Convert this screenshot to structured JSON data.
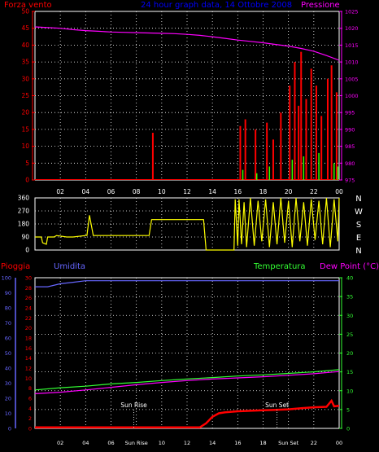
{
  "title": "24 hour graph data, 14 Ottobre 2008",
  "chart_data": [
    {
      "type": "line",
      "name": "wind-pressure",
      "left_label": "Forza vento",
      "right_label": "Pressione",
      "x_ticks": [
        "02",
        "04",
        "06",
        "08",
        "10",
        "12",
        "14",
        "16",
        "18",
        "20",
        "22",
        "00"
      ],
      "x_range_hours": [
        0,
        24
      ],
      "left_axis": {
        "range": [
          0,
          50
        ],
        "ticks": [
          "0",
          "5",
          "10",
          "15",
          "20",
          "25",
          "30",
          "35",
          "40",
          "45",
          "50"
        ]
      },
      "right_axis": {
        "range": [
          975,
          1025
        ],
        "ticks": [
          "975",
          "980",
          "985",
          "990",
          "995",
          "1000",
          "1005",
          "1010",
          "1015",
          "1020",
          "1025"
        ]
      },
      "pressure": {
        "x": [
          0,
          1,
          2,
          3,
          4,
          5,
          6,
          7,
          8,
          9,
          10,
          11,
          12,
          13,
          14,
          15,
          16,
          17,
          18,
          19,
          20,
          21,
          22,
          23,
          24
        ],
        "y": [
          1020.4,
          1020.2,
          1020.0,
          1019.6,
          1019.3,
          1019.1,
          1018.9,
          1018.8,
          1018.7,
          1018.6,
          1018.5,
          1018.4,
          1018.2,
          1017.9,
          1017.5,
          1017.0,
          1016.5,
          1016.1,
          1015.7,
          1015.2,
          1014.7,
          1014.0,
          1013.2,
          1011.9,
          1010.5
        ]
      },
      "wind_red_spikes": [
        [
          9.3,
          14
        ],
        [
          16.2,
          16
        ],
        [
          16.6,
          18
        ],
        [
          17.4,
          15
        ],
        [
          18.3,
          17
        ],
        [
          18.8,
          12
        ],
        [
          19.4,
          20
        ],
        [
          20.1,
          28
        ],
        [
          20.5,
          35
        ],
        [
          20.8,
          22
        ],
        [
          21.0,
          38
        ],
        [
          21.4,
          24
        ],
        [
          21.8,
          33
        ],
        [
          22.2,
          28
        ],
        [
          22.6,
          19
        ],
        [
          23.1,
          30
        ],
        [
          23.4,
          34
        ],
        [
          23.8,
          26
        ]
      ],
      "wind_green_spikes": [
        [
          16.4,
          3
        ],
        [
          17.5,
          2
        ],
        [
          18.5,
          4
        ],
        [
          20.3,
          6
        ],
        [
          21.2,
          7
        ],
        [
          22.4,
          8
        ],
        [
          23.6,
          5
        ],
        [
          23.9,
          4
        ]
      ]
    },
    {
      "type": "line",
      "name": "wind-direction",
      "right_labels": [
        "N",
        "W",
        "S",
        "E",
        "N"
      ],
      "y_axis": {
        "range": [
          0,
          360
        ],
        "ticks": [
          "0",
          "90",
          "180",
          "270",
          "360"
        ]
      },
      "x_range_hours": [
        0,
        24
      ],
      "direction": {
        "x": [
          0,
          0.5,
          0.6,
          0.9,
          1.0,
          1.5,
          1.7,
          2.5,
          3.0,
          4.0,
          4.1,
          4.3,
          4.6,
          5.0,
          5.5,
          6.0,
          6.5,
          7.0,
          8.0,
          8.8,
          9.0,
          9.2,
          10.0,
          11.0,
          12.0,
          13.0,
          13.3,
          13.5,
          15.0,
          15.7,
          15.8,
          16.0,
          16.1,
          16.3,
          16.5,
          16.7,
          17.0,
          17.3,
          17.6,
          17.9,
          18.2,
          18.5,
          18.8,
          19.1,
          19.4,
          19.7,
          20.0,
          20.3,
          20.6,
          20.9,
          21.2,
          21.5,
          21.8,
          22.1,
          22.4,
          22.7,
          23.0,
          23.3,
          23.6,
          23.9,
          24.0
        ],
        "y": [
          90,
          90,
          50,
          40,
          90,
          90,
          100,
          90,
          90,
          100,
          100,
          240,
          100,
          100,
          100,
          100,
          100,
          100,
          100,
          100,
          100,
          210,
          210,
          210,
          210,
          210,
          210,
          0,
          0,
          0,
          350,
          30,
          350,
          40,
          330,
          20,
          360,
          30,
          340,
          60,
          350,
          20,
          330,
          40,
          360,
          50,
          340,
          20,
          360,
          60,
          330,
          30,
          350,
          70,
          340,
          40,
          360,
          20,
          350,
          60,
          360
        ]
      }
    },
    {
      "type": "line",
      "name": "rain-humidity-temperature",
      "left_label_1": "Pioggia",
      "left_label_2": "Umidita",
      "right_label_1": "Temperatura",
      "right_label_2": "Dew Point (°C)",
      "x_ticks": [
        "02",
        "04",
        "06",
        "Sun Rise",
        "10",
        "12",
        "14",
        "16",
        "18",
        "Sun Set",
        "22",
        "00"
      ],
      "x_range_hours": [
        0,
        24
      ],
      "rain_axis": {
        "range": [
          0,
          30
        ],
        "ticks": [
          "0",
          "2",
          "4",
          "6",
          "8",
          "10",
          "12",
          "14",
          "16",
          "18",
          "20",
          "22",
          "24",
          "26",
          "28",
          "30"
        ]
      },
      "humidity_axis": {
        "range": [
          0,
          100
        ],
        "ticks": [
          "0",
          "10",
          "20",
          "30",
          "40",
          "50",
          "60",
          "70",
          "80",
          "90",
          "100"
        ]
      },
      "temperature_axis": {
        "range": [
          0,
          40
        ],
        "ticks": [
          "0",
          "5",
          "10",
          "15",
          "20",
          "25",
          "30",
          "35",
          "40"
        ]
      },
      "annotations": [
        {
          "text": "Sun Rise",
          "x": 7.8
        },
        {
          "text": "Sun Set",
          "x": 19.1
        }
      ],
      "rain": {
        "x": [
          0,
          13.0,
          13.5,
          14.0,
          14.5,
          15.0,
          16.0,
          17.0,
          18.0,
          19.0,
          20.0,
          21.0,
          22.0,
          23.0,
          23.4,
          23.6,
          24.0
        ],
        "y": [
          0.2,
          0.2,
          1.0,
          2.3,
          3.0,
          3.2,
          3.4,
          3.5,
          3.6,
          3.7,
          3.8,
          4.0,
          4.2,
          4.3,
          5.5,
          4.4,
          4.5
        ]
      },
      "humidity": {
        "x": [
          0,
          1,
          2,
          3,
          4,
          5,
          6,
          7,
          8,
          9,
          10,
          11,
          12,
          13,
          14,
          15,
          16,
          17,
          18,
          19,
          20,
          21,
          22,
          23,
          24
        ],
        "y": [
          94,
          94,
          96,
          97,
          98,
          98,
          98,
          98,
          98,
          98,
          98,
          98,
          98,
          98,
          98,
          98,
          98,
          98,
          98,
          98,
          98,
          98,
          98,
          98,
          98
        ]
      },
      "temperature": {
        "x": [
          0,
          2,
          4,
          6,
          8,
          10,
          12,
          14,
          16,
          18,
          20,
          22,
          24
        ],
        "y": [
          10.2,
          10.8,
          11.2,
          11.8,
          12.2,
          12.7,
          13.1,
          13.5,
          13.9,
          14.2,
          14.6,
          15.0,
          15.6
        ]
      },
      "dew_point": {
        "x": [
          0,
          2,
          4,
          6,
          8,
          10,
          12,
          14,
          16,
          18,
          20,
          22,
          24
        ],
        "y": [
          9.2,
          9.6,
          10.2,
          10.9,
          11.6,
          12.2,
          12.7,
          13.1,
          13.4,
          13.7,
          14.1,
          14.5,
          15.1
        ]
      }
    }
  ],
  "colors": {
    "wind": "#ff0000",
    "wind_gust": "#33ff00",
    "pressure": "#ff00ff",
    "direction": "#ffff00",
    "rain": "#ff0000",
    "humidity": "#6666ff",
    "temperature": "#33ff33",
    "dew_point": "#ff00ff",
    "grid": "#ffffff",
    "title": "#0000ff",
    "right_axis_p1": "#ff00ff",
    "left_axis_p1": "#ff0000",
    "left_axis_p3": "#6666ff",
    "left_axis_rain": "#ff0000",
    "right_axis_p3": "#33ff33"
  }
}
